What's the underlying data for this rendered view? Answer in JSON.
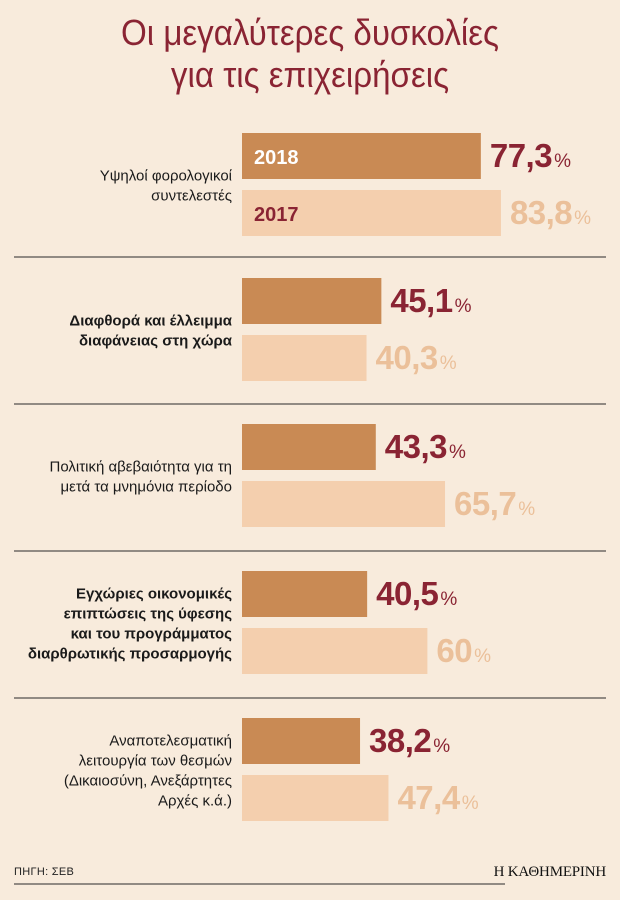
{
  "header": {
    "title_line1": "Οι μεγαλύτερες δυσκολίες",
    "title_line2": "για τις επιχειρήσεις"
  },
  "footer": {
    "source": "ΠΗΓΗ: ΣΕΒ",
    "brand": "Η ΚΑΘΗΜΕΡΙΝΗ"
  },
  "colors": {
    "background": "#f8ebdc",
    "bar_2018": "#c98a54",
    "bar_2017": "#f4cfae",
    "value_2018": "#8a2433",
    "value_2017": "#ebc09a",
    "title": "#8a2433"
  },
  "chart_data": {
    "type": "bar",
    "orientation": "horizontal",
    "series_labels": [
      "2018",
      "2017"
    ],
    "categories": [
      {
        "label": [
          "Υψηλοί φορολογικοί",
          "συντελεστές"
        ],
        "bold": false
      },
      {
        "label": [
          "Διαφθορά και έλλειμμα",
          "διαφάνειας στη χώρα"
        ],
        "bold": true
      },
      {
        "label": [
          "Πολιτική αβεβαιότητα για τη",
          "μετά τα μνημόνια περίοδο"
        ],
        "bold": false
      },
      {
        "label": [
          "Εγχώριες οικονομικές",
          "επιπτώσεις της ύφεσης",
          "και του προγράμματος",
          "διαρθρωτικής προσαρμογής"
        ],
        "bold": true
      },
      {
        "label": [
          "Αναποτελεσματική",
          "λειτουργία των θεσμών",
          "(Δικαιοσύνη, Ανεξάρτητες",
          "Αρχές κ.ά.)"
        ],
        "bold": false
      }
    ],
    "series": [
      {
        "name": "2018",
        "values": [
          77.3,
          45.1,
          43.3,
          40.5,
          38.2
        ],
        "display": [
          "77,3",
          "45,1",
          "43,3",
          "40,5",
          "38,2"
        ]
      },
      {
        "name": "2017",
        "values": [
          83.8,
          40.3,
          65.7,
          60,
          47.4
        ],
        "display": [
          "83,8",
          "40,3",
          "65,7",
          "60",
          "47,4"
        ]
      }
    ],
    "unit": "%"
  }
}
